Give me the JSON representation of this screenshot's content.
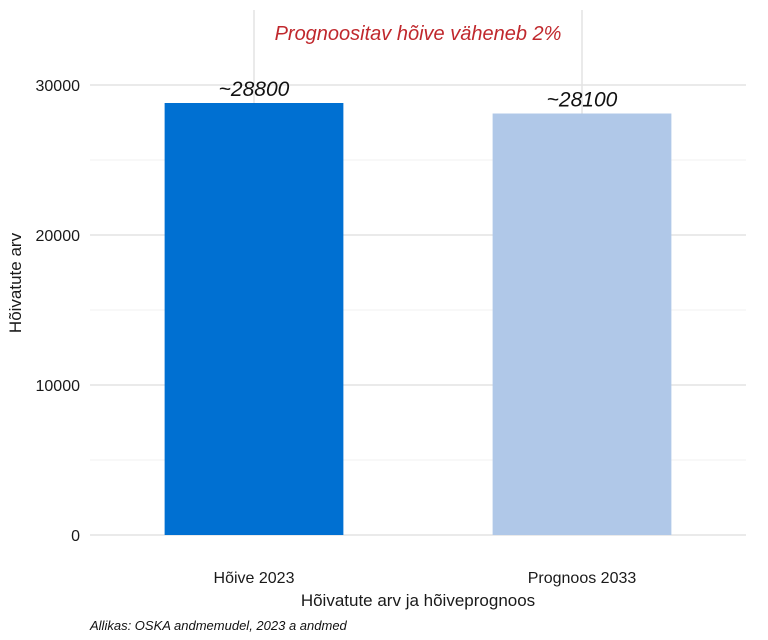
{
  "chart_data": {
    "type": "bar",
    "categories": [
      "Hõive 2023",
      "Prognoos 2033"
    ],
    "values": [
      28800,
      28100
    ],
    "data_labels": [
      "~28800",
      "~28100"
    ],
    "bar_colors": [
      "#0070D2",
      "#B0C8E8"
    ],
    "annotation": "Prognoositav hõive väheneb 2%",
    "annotation_color": "#C0282D",
    "xlabel": "Hõivatute arv ja hõiveprognoos",
    "ylabel": "Hõivatute arv",
    "yticks": [
      0,
      10000,
      20000,
      30000
    ],
    "ylim": [
      0,
      35000
    ],
    "grid": true,
    "caption": "Allikas: OSKA andmemudel, 2023 a andmed"
  }
}
